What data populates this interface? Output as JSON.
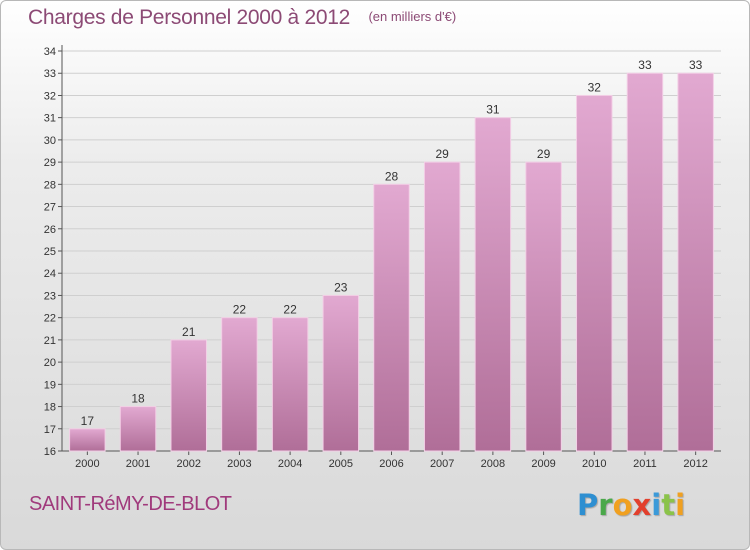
{
  "title": "Charges de Personnel 2000 à 2012",
  "subtitle": "(en milliers d'€)",
  "commune": "SAINT-RéMY-DE-BLOT",
  "brand": {
    "letters": [
      {
        "char": "P",
        "color": "#2e8fd1"
      },
      {
        "char": "r",
        "color": "#4aa84a"
      },
      {
        "char": "o",
        "color": "#f0a020"
      },
      {
        "char": "x",
        "color": "#e2402d"
      },
      {
        "char": "i",
        "color": "#3b9ad9"
      },
      {
        "char": "t",
        "color": "#8bc34a"
      },
      {
        "char": "i",
        "color": "#f0a020"
      }
    ]
  },
  "colors": {
    "bar_top": "#e2a9d1",
    "bar_bottom": "#b06e98",
    "bar_edge": "#f3cfe6"
  },
  "chart_data": {
    "type": "bar",
    "categories": [
      "2000",
      "2001",
      "2002",
      "2003",
      "2004",
      "2005",
      "2006",
      "2007",
      "2008",
      "2009",
      "2010",
      "2011",
      "2012"
    ],
    "values": [
      17,
      18,
      21,
      22,
      22,
      23,
      28,
      29,
      31,
      29,
      32,
      33,
      33
    ],
    "ylim": [
      16,
      34
    ],
    "yticks": [
      16,
      17,
      18,
      19,
      20,
      21,
      22,
      23,
      24,
      25,
      26,
      27,
      28,
      29,
      30,
      31,
      32,
      33,
      34
    ],
    "grid": true,
    "legend": "none"
  }
}
